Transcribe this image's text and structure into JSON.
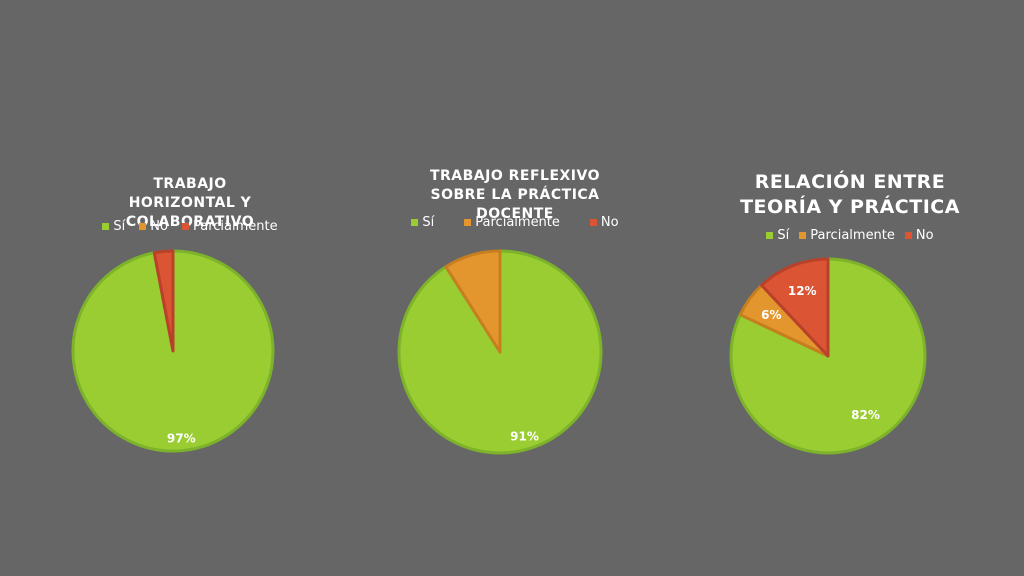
{
  "colors": {
    "background": "#666666",
    "green": "#9ACD32",
    "green_stroke": "#7DB32B",
    "orange": "#E3962E",
    "orange_stroke": "#C77E1F",
    "red": "#DB5535",
    "red_stroke": "#B9412A"
  },
  "chart_data": [
    {
      "type": "pie",
      "title": "TRABAJO HORIZONTAL Y COLABORATIVO",
      "legend": [
        "Sí",
        "No",
        "Parcialmente"
      ],
      "slices": [
        {
          "label": "Sí",
          "value": 97,
          "color": "#9ACD32",
          "pct_label": "97%"
        },
        {
          "label": "No",
          "value": 0,
          "color": "#E3962E",
          "pct_label": ""
        },
        {
          "label": "Parcialmente",
          "value": 3,
          "color": "#DB5535",
          "pct_label": ""
        }
      ]
    },
    {
      "type": "pie",
      "title": "TRABAJO REFLEXIVO SOBRE LA PRÁCTICA DOCENTE",
      "legend": [
        "Sí",
        "Parcialmente",
        "No"
      ],
      "slices": [
        {
          "label": "Sí",
          "value": 91,
          "color": "#9ACD32",
          "pct_label": "91%"
        },
        {
          "label": "Parcialmente",
          "value": 9,
          "color": "#E3962E",
          "pct_label": ""
        },
        {
          "label": "No",
          "value": 0,
          "color": "#DB5535",
          "pct_label": ""
        }
      ]
    },
    {
      "type": "pie",
      "title": "RELACIÓN ENTRE TEORÍA Y PRÁCTICA",
      "legend": [
        "Sí",
        "Parcialmente",
        "No"
      ],
      "slices": [
        {
          "label": "Sí",
          "value": 82,
          "color": "#9ACD32",
          "pct_label": "82%"
        },
        {
          "label": "Parcialmente",
          "value": 6,
          "color": "#E3962E",
          "pct_label": "6%"
        },
        {
          "label": "No",
          "value": 12,
          "color": "#DB5535",
          "pct_label": "12%"
        }
      ]
    }
  ]
}
